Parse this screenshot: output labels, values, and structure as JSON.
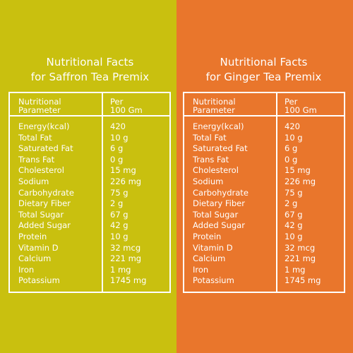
{
  "panels": [
    {
      "title_line1": "Nutritional Facts",
      "title_line2": "for Saffron Tea Premix",
      "header_param_line1": "Nutritional",
      "header_param_line2": "Parameter",
      "header_per_line1": "Per",
      "header_per_line2": "100 Gm",
      "rows": [
        {
          "name": "Energy(kcal)",
          "value": "420"
        },
        {
          "name": "Total Fat",
          "value": "10 g"
        },
        {
          "name": "Saturated Fat",
          "value": "6 g"
        },
        {
          "name": "Trans Fat",
          "value": "0 g"
        },
        {
          "name": "Cholesterol",
          "value": "15 mg"
        },
        {
          "name": "Sodium",
          "value": "226 mg"
        },
        {
          "name": "Carbohydrate",
          "value": "75 g"
        },
        {
          "name": "Dietary Fiber",
          "value": "2 g"
        },
        {
          "name": "Total Sugar",
          "value": "67 g"
        },
        {
          "name": "Added Sugar",
          "value": "42 g"
        },
        {
          "name": "Protein",
          "value": "10 g"
        },
        {
          "name": "Vitamin D",
          "value": "32 mcg"
        },
        {
          "name": "Calcium",
          "value": "221 mg"
        },
        {
          "name": "Iron",
          "value": "1 mg"
        },
        {
          "name": "Potassium",
          "value": "1745 mg"
        }
      ]
    },
    {
      "title_line1": "Nutritional Facts",
      "title_line2": "for Ginger Tea Premix",
      "header_param_line1": "Nutritional",
      "header_param_line2": "Parameter",
      "header_per_line1": "Per",
      "header_per_line2": "100 Gm",
      "rows": [
        {
          "name": "Energy(kcal)",
          "value": "420"
        },
        {
          "name": "Total Fat",
          "value": "10 g"
        },
        {
          "name": "Saturated Fat",
          "value": "6 g"
        },
        {
          "name": "Trans Fat",
          "value": "0 g"
        },
        {
          "name": "Cholesterol",
          "value": "15 mg"
        },
        {
          "name": "Sodium",
          "value": "226 mg"
        },
        {
          "name": "Carbohydrate",
          "value": "75 g"
        },
        {
          "name": "Dietary Fiber",
          "value": "2 g"
        },
        {
          "name": "Total Sugar",
          "value": "67 g"
        },
        {
          "name": "Added Sugar",
          "value": "42 g"
        },
        {
          "name": "Protein",
          "value": "10 g"
        },
        {
          "name": "Vitamin D",
          "value": "32 mcg"
        },
        {
          "name": "Calcium",
          "value": "221 mg"
        },
        {
          "name": "Iron",
          "value": "1 mg"
        },
        {
          "name": "Potassium",
          "value": "1745 mg"
        }
      ]
    }
  ],
  "colors": {
    "left_background": "#c9c00f",
    "right_background": "#e9762c",
    "text": "#ffffff"
  }
}
